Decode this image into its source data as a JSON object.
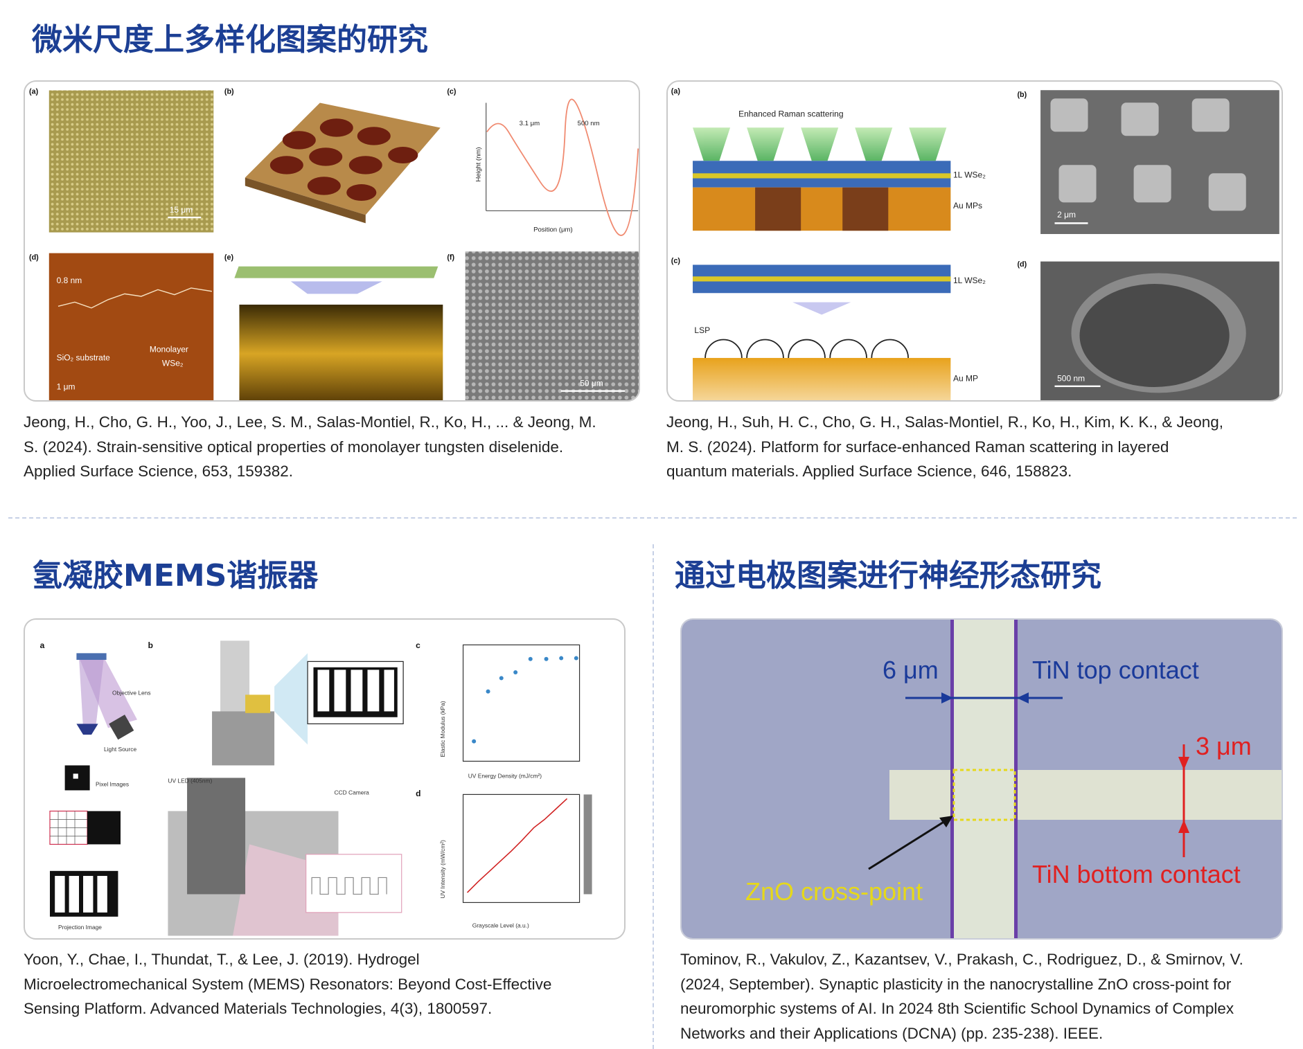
{
  "sections": [
    {
      "title": "微米尺度上多样化图案的研究",
      "figure": {
        "labels": [
          "(a)",
          "(b)",
          "(c)",
          "(d)",
          "(e)",
          "(f)",
          "15 μm",
          "0.8 nm",
          "SiO₂ substrate",
          "Monolayer",
          "WSe₂",
          "1 μm",
          "50 μm",
          "3.1 μm",
          "500 nm",
          "Position (μm)",
          "Height (nm)"
        ]
      },
      "citation": [
        "Jeong, H., Cho, G. H., Yoo, J., Lee, S. M., Salas-Montiel, R., Ko, H., ... & Jeong, M.",
        "S. (2024). Strain-sensitive optical properties of monolayer tungsten diselenide.",
        "Applied Surface Science, 653, 159382."
      ]
    },
    {
      "title": "",
      "figure": {
        "labels": [
          "(a)",
          "(b)",
          "(c)",
          "(d)",
          "Enhanced Raman scattering",
          "1L WSe₂",
          "Au MPs",
          "2 μm",
          "1L WSe₂",
          "LSP",
          "Au MP",
          "500 nm"
        ]
      },
      "citation": [
        "Jeong, H., Suh, H. C., Cho, G. H., Salas-Montiel, R., Ko, H., Kim, K. K., & Jeong,",
        "M. S. (2024). Platform for surface-enhanced Raman scattering in layered",
        "quantum materials. Applied Surface Science, 646, 158823."
      ]
    },
    {
      "title": "氢凝胶MEMS谐振器",
      "figure": {
        "labels": [
          "a",
          "b",
          "c",
          "d",
          "Objective Lens",
          "Light Source",
          "Pixel Images",
          "Projection Image",
          "UV LED (405nm)",
          "CCD Camera",
          "UV Energy Density (mJ/cm²)",
          "Grayscale Level (a.u.)",
          "Elastic Modulus (kPa)",
          "UV Intensity (mW/cm²)"
        ]
      },
      "citation": [
        "Yoon, Y., Chae, I., Thundat, T., & Lee, J. (2019). Hydrogel",
        "Microelectromechanical System (MEMS) Resonators: Beyond Cost-Effective",
        "Sensing Platform. Advanced Materials Technologies, 4(3), 1800597."
      ]
    },
    {
      "title": "通过电极图案进行神经形态研究",
      "figure": {
        "labels": [
          "6 μm",
          "TiN top contact",
          "3 μm",
          "ZnO cross-point",
          "TiN bottom contact"
        ]
      },
      "citation": [
        "Tominov, R., Vakulov, Z., Kazantsev, V., Prakash, C., Rodriguez, D., & Smirnov, V.",
        "(2024, September). Synaptic plasticity in the nanocrystalline ZnO cross-point for",
        "neuromorphic systems of AI. In 2024 8th Scientific School Dynamics of Complex",
        "Networks and their Applications (DCNA) (pp. 235-238). IEEE."
      ]
    }
  ]
}
